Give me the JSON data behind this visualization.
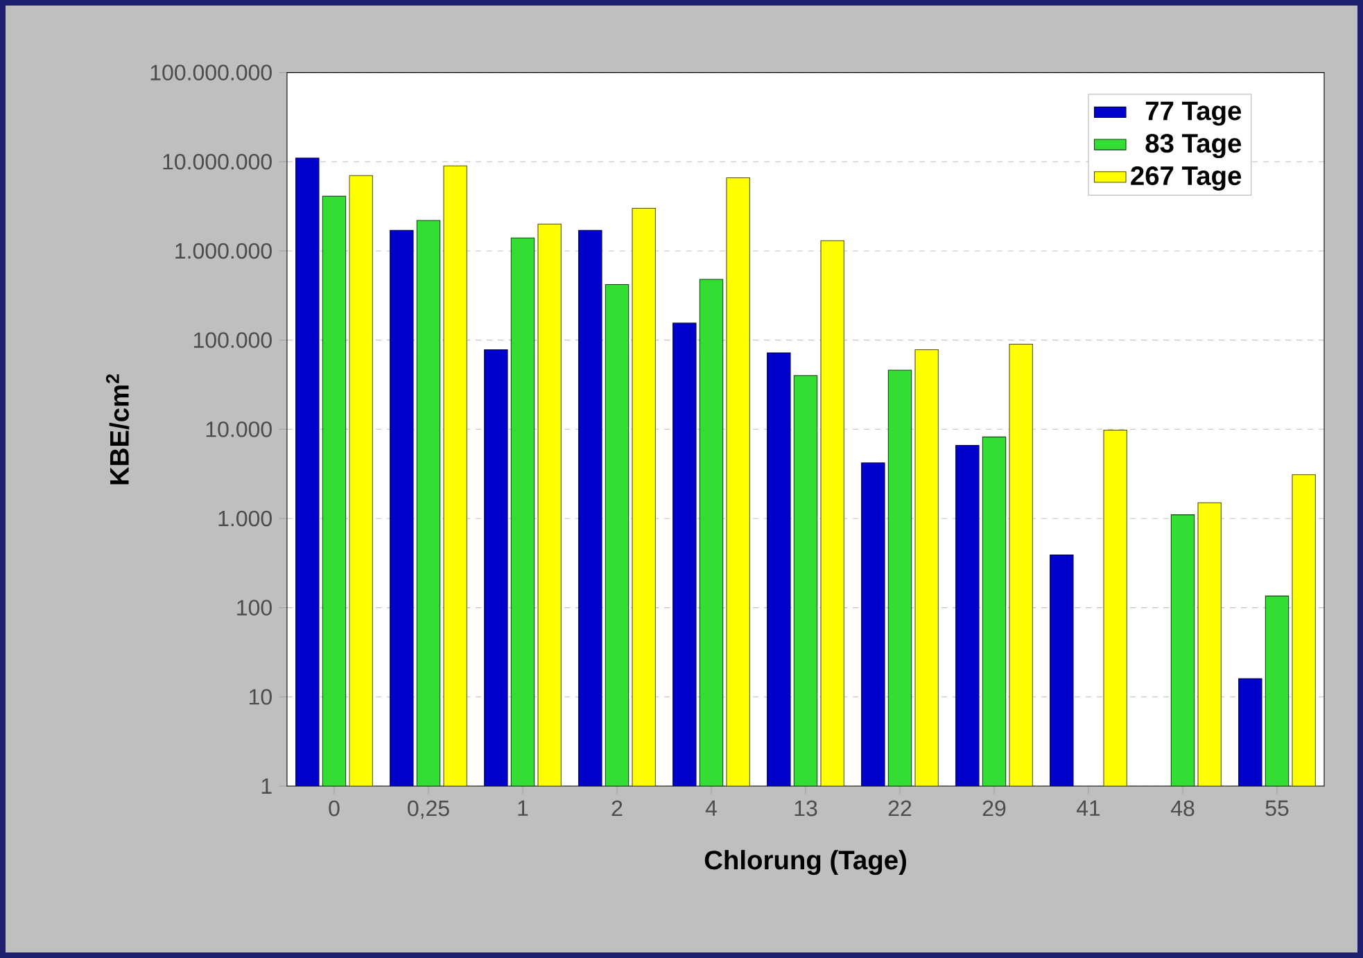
{
  "chart_data": {
    "type": "bar",
    "xlabel": "Chlorung (Tage)",
    "ylabel": "KBE/cm$^{2}$",
    "categories": [
      "0",
      "0,25",
      "1",
      "2",
      "4",
      "13",
      "22",
      "29",
      "41",
      "48",
      "55"
    ],
    "series": [
      {
        "name": "77 Tage",
        "color": "#0000cc",
        "values": [
          11000000,
          1700000,
          78000,
          1700000,
          155000,
          72000,
          4200,
          6600,
          390,
          null,
          16
        ]
      },
      {
        "name": "83 Tage",
        "color": "#33dd33",
        "values": [
          4100000,
          2200000,
          1400000,
          420000,
          480000,
          40000,
          46000,
          8200,
          null,
          1100,
          135
        ]
      },
      {
        "name": "267 Tage",
        "color": "#ffff00",
        "values": [
          7000000,
          9000000,
          2000000,
          3000000,
          6600000,
          1300000,
          78000,
          90000,
          9800,
          1500,
          3100
        ]
      }
    ],
    "log": "y",
    "ylim": [
      1,
      100000000
    ],
    "yticks": [
      1,
      10,
      100,
      {
        "value": 1000,
        "label": "1.000"
      },
      {
        "value": 10000,
        "label": "10.000"
      },
      {
        "value": 100000,
        "label": "100.000"
      },
      {
        "value": 1000000,
        "label": "1.000.000"
      },
      {
        "value": 10000000,
        "label": "10.000.000"
      },
      {
        "value": 100000000,
        "label": "100.000.000"
      }
    ],
    "grid": "y",
    "legend": "top right"
  }
}
